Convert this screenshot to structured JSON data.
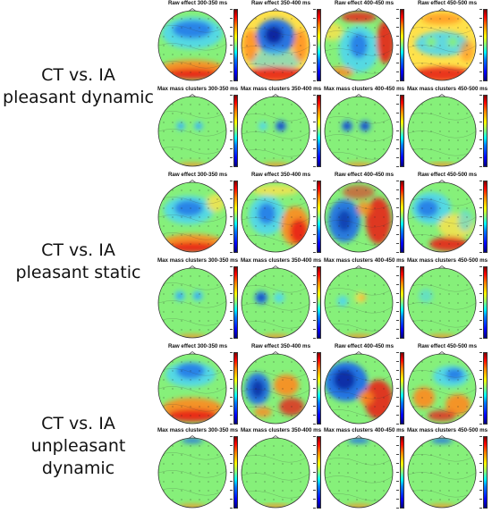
{
  "groups": [
    {
      "label": "CT vs. IA\npleasant dynamic",
      "rows": [
        {
          "titles": [
            "Raw effect 300-350 ms",
            "Raw effect 350-400 ms",
            "Raw effect 400-450 ms",
            "Raw effect 450-500 ms"
          ]
        },
        {
          "titles": [
            "Max mass clusters 300-350 ms",
            "Max mass clusters 350-400 ms",
            "Max mass clusters 400-450 ms",
            "Max mass clusters 450-500 ms"
          ]
        }
      ]
    },
    {
      "label": "CT vs. IA\npleasant static",
      "rows": [
        {
          "titles": [
            "Raw effect 300-350 ms",
            "Raw effect 350-400 ms",
            "Raw effect 400-450 ms",
            "Raw effect 450-500 ms"
          ]
        },
        {
          "titles": [
            "Max mass clusters 300-350 ms",
            "Max mass clusters 350-400 ms",
            "Max mass clusters 400-450 ms",
            "Max mass clusters 450-500 ms"
          ]
        }
      ]
    },
    {
      "label": "CT vs. IA\nunpleasant dynamic",
      "rows": [
        {
          "titles": [
            "Raw effect 300-350 ms",
            "Raw effect 350-400 ms",
            "Raw effect 400-450 ms",
            "Raw effect 450-500 ms"
          ]
        },
        {
          "titles": [
            "Max mass clusters 300-350 ms",
            "Max mass clusters 350-400 ms",
            "Max mass clusters 400-450 ms",
            "Max mass clusters 450-500 ms"
          ]
        }
      ]
    }
  ],
  "colors": {
    "green": "#86f07a",
    "blue": "#1e6fe8",
    "cyan": "#4fd6ee",
    "yellow": "#ffe14a",
    "orange": "#ff8a1e",
    "red": "#e8231a",
    "navy": "#0a1f9a",
    "head_outline": "#333333",
    "label_text": "#111111"
  }
}
